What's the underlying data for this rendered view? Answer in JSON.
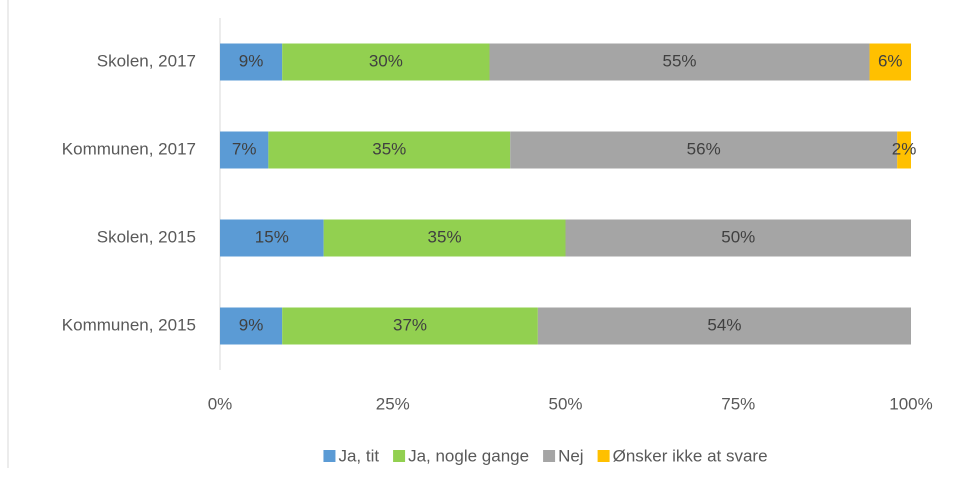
{
  "chart_data": {
    "type": "stacked-bar-horizontal",
    "categories": [
      "Skolen, 2017",
      "Kommunen, 2017",
      "Skolen, 2015",
      "Kommunen, 2015"
    ],
    "series": [
      {
        "name": "Ja, tit",
        "color": "#5b9bd5",
        "values": [
          9,
          7,
          15,
          9
        ],
        "value_labels": [
          "9%",
          "7%",
          "15%",
          "9%"
        ]
      },
      {
        "name": "Ja, nogle gange",
        "color": "#92d050",
        "values": [
          30,
          35,
          35,
          37
        ],
        "value_labels": [
          "30%",
          "35%",
          "35%",
          "37%"
        ]
      },
      {
        "name": "Nej",
        "color": "#a5a5a5",
        "values": [
          55,
          56,
          50,
          54
        ],
        "value_labels": [
          "55%",
          "56%",
          "50%",
          "54%"
        ]
      },
      {
        "name": "Ønsker ikke at svare",
        "color": "#ffc000",
        "values": [
          6,
          2,
          null,
          null
        ],
        "value_labels": [
          "6%",
          "2%",
          null,
          null
        ]
      }
    ],
    "xlim": [
      0,
      100
    ],
    "xticks": [
      {
        "value": 0,
        "label": "0%"
      },
      {
        "value": 25,
        "label": "25%"
      },
      {
        "value": 50,
        "label": "50%"
      },
      {
        "value": 75,
        "label": "75%"
      },
      {
        "value": 100,
        "label": "100%"
      }
    ],
    "legend": "bottom",
    "grid": false
  }
}
